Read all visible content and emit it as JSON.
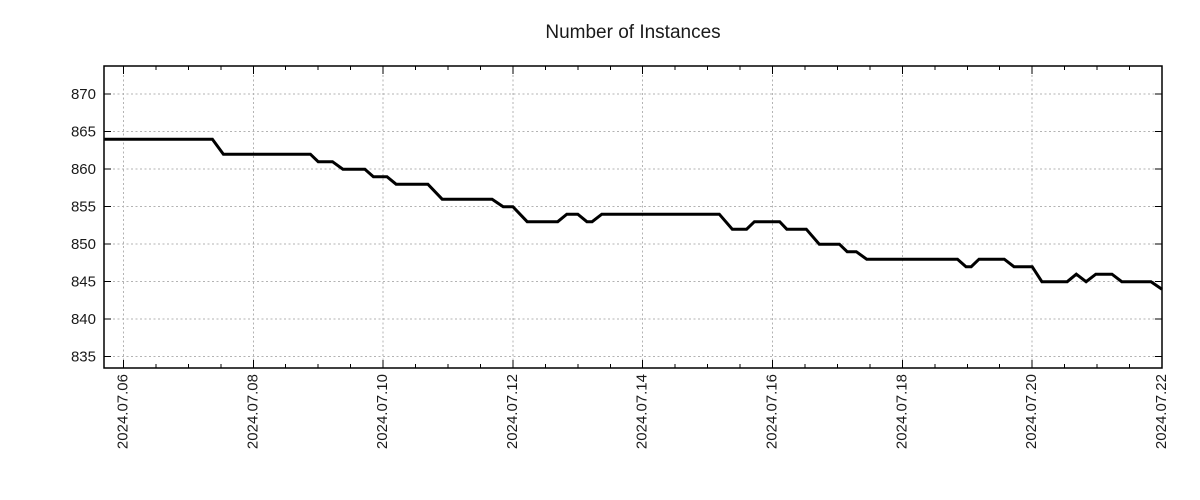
{
  "chart_data": {
    "type": "line",
    "title": "Number of Instances",
    "line_color": "#000000",
    "grid_color": "#b3b3b3",
    "axis_color": "#000000",
    "text_color": "#1a1a1a",
    "grid": "on",
    "legend": "none",
    "x_unit": "days since 2024-07-06 00:00",
    "x_axis": {
      "range_days": [
        -0.3,
        16
      ],
      "major_tick_interval_days": 2,
      "minor_tick_interval_days": 0.5,
      "tick_positions_days": [
        0,
        2,
        4,
        6,
        8,
        10,
        12,
        14,
        16
      ],
      "tick_labels": [
        "2024.07.06",
        "2024.07.08",
        "2024.07.10",
        "2024.07.12",
        "2024.07.14",
        "2024.07.16",
        "2024.07.18",
        "2024.07.20",
        "2024.07.22"
      ]
    },
    "y_axis": {
      "range": [
        833.5,
        873.75
      ],
      "tick_values": [
        835,
        840,
        845,
        850,
        855,
        860,
        865,
        870
      ],
      "tick_labels": [
        "835",
        "840",
        "845",
        "850",
        "855",
        "860",
        "865",
        "870"
      ]
    },
    "series": [
      {
        "name": "instances",
        "points": [
          [
            -0.29,
            864
          ],
          [
            1.37,
            864
          ],
          [
            1.54,
            862
          ],
          [
            2.88,
            862
          ],
          [
            3.0,
            861
          ],
          [
            3.22,
            861
          ],
          [
            3.38,
            860
          ],
          [
            3.72,
            860
          ],
          [
            3.85,
            859
          ],
          [
            4.06,
            859
          ],
          [
            4.2,
            858
          ],
          [
            4.69,
            858
          ],
          [
            4.91,
            856
          ],
          [
            5.68,
            856
          ],
          [
            5.85,
            855
          ],
          [
            6.0,
            855
          ],
          [
            6.22,
            853
          ],
          [
            6.69,
            853
          ],
          [
            6.83,
            854
          ],
          [
            7.0,
            854
          ],
          [
            7.14,
            853
          ],
          [
            7.22,
            853
          ],
          [
            7.37,
            854
          ],
          [
            9.18,
            854
          ],
          [
            9.38,
            852
          ],
          [
            9.6,
            852
          ],
          [
            9.72,
            853
          ],
          [
            10.11,
            853
          ],
          [
            10.22,
            852
          ],
          [
            10.52,
            852
          ],
          [
            10.72,
            850
          ],
          [
            11.03,
            850
          ],
          [
            11.15,
            849
          ],
          [
            11.29,
            849
          ],
          [
            11.45,
            848
          ],
          [
            12.85,
            848
          ],
          [
            12.98,
            847
          ],
          [
            13.06,
            847
          ],
          [
            13.18,
            848
          ],
          [
            13.57,
            848
          ],
          [
            13.72,
            847
          ],
          [
            14.0,
            847
          ],
          [
            14.15,
            845
          ],
          [
            14.54,
            845
          ],
          [
            14.68,
            846
          ],
          [
            14.83,
            845
          ],
          [
            14.98,
            846
          ],
          [
            15.23,
            846
          ],
          [
            15.38,
            845
          ],
          [
            15.83,
            845
          ],
          [
            16.0,
            844
          ]
        ]
      }
    ]
  }
}
